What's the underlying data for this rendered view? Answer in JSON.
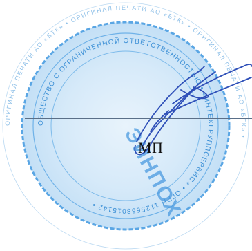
{
  "document": {
    "mp_label": "МП"
  },
  "stamp": {
    "outer_ring_text": "ОРИГИНАЛ ПЕЧАТИ АО «БТК» • ОРИГИНАЛ ПЕЧАТИ АО «БТК» • ОРИГИНАЛ ПЕЧАТИ АО «БТК» • ",
    "inner_ring_text": "ОБЩЕСТВО С ОГРАНИЧЕННОЙ ОТВЕТСТВЕННОСТЬЮ • «ИНТЕХГРУППСЕРВИС» • ОГРН 1125658015142 • ",
    "center_text": "ЭИНПОХ",
    "color": "#3b8fd6",
    "ring_color": "#5aa6e4",
    "fill_color": "#cfe6f8"
  },
  "signature": {
    "color": "#2e4fb8"
  },
  "colors": {
    "line": "#5a6f88",
    "text": "#111111",
    "background": "#ffffff"
  }
}
